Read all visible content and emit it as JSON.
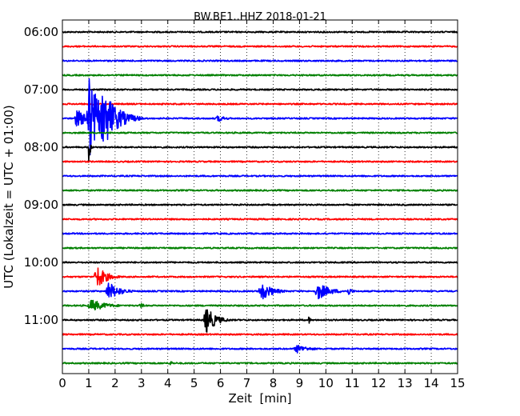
{
  "chart_data": {
    "type": "line",
    "title": "BW.BE1..HHZ 2018-01-21",
    "xlabel": "Zeit  [min]",
    "ylabel": "UTC (Lokalzeit = UTC + 01:00)",
    "xlim": [
      0,
      15
    ],
    "x_ticks": [
      0,
      1,
      2,
      3,
      4,
      5,
      6,
      7,
      8,
      9,
      10,
      11,
      12,
      13,
      14,
      15
    ],
    "y_tick_labels": [
      "06:00",
      "07:00",
      "08:00",
      "09:00",
      "10:00",
      "11:00"
    ],
    "grid": "vertical dotted at each minute",
    "row_colors": [
      "#000000",
      "#ff0000",
      "#0000ff",
      "#008000"
    ],
    "rows": [
      {
        "start": "06:00",
        "events": []
      },
      {
        "start": "06:15",
        "events": []
      },
      {
        "start": "06:30",
        "events": []
      },
      {
        "start": "06:45",
        "events": []
      },
      {
        "start": "07:00",
        "events": []
      },
      {
        "start": "07:15",
        "events": []
      },
      {
        "start": "07:30",
        "events": [
          {
            "t": 0.55,
            "amp": 0.5,
            "dur": 0.5
          },
          {
            "t": 1.0,
            "amp": 2.6,
            "dur": 0.4
          },
          {
            "t": 1.25,
            "amp": 0.8,
            "dur": 0.3
          },
          {
            "t": 1.55,
            "amp": 1.8,
            "dur": 0.5
          },
          {
            "t": 5.9,
            "amp": 0.2,
            "dur": 0.3
          }
        ]
      },
      {
        "start": "07:45",
        "events": []
      },
      {
        "start": "08:00",
        "events": [
          {
            "t": 1.0,
            "amp": 1.1,
            "dur": 0.05
          },
          {
            "t": 12.2,
            "amp": 0.05,
            "dur": 0.2
          }
        ]
      },
      {
        "start": "08:15",
        "events": []
      },
      {
        "start": "08:30",
        "events": [
          {
            "t": 11.5,
            "amp": 0.12,
            "dur": 0.05
          }
        ]
      },
      {
        "start": "08:45",
        "events": []
      },
      {
        "start": "09:00",
        "events": []
      },
      {
        "start": "09:15",
        "events": []
      },
      {
        "start": "09:30",
        "events": []
      },
      {
        "start": "09:45",
        "events": []
      },
      {
        "start": "10:00",
        "events": [
          {
            "t": 4.9,
            "amp": 0.06,
            "dur": 0.1
          }
        ]
      },
      {
        "start": "10:15",
        "events": [
          {
            "t": 1.3,
            "amp": 0.7,
            "dur": 0.35
          }
        ]
      },
      {
        "start": "10:30",
        "events": [
          {
            "t": 1.75,
            "amp": 0.55,
            "dur": 0.4
          },
          {
            "t": 7.55,
            "amp": 0.55,
            "dur": 0.4
          },
          {
            "t": 9.7,
            "amp": 0.5,
            "dur": 0.45
          },
          {
            "t": 10.85,
            "amp": 0.25,
            "dur": 0.15
          }
        ]
      },
      {
        "start": "10:45",
        "events": [
          {
            "t": 1.1,
            "amp": 0.35,
            "dur": 0.55
          },
          {
            "t": 2.95,
            "amp": 0.25,
            "dur": 0.1
          }
        ]
      },
      {
        "start": "11:00",
        "events": [
          {
            "t": 5.45,
            "amp": 0.8,
            "dur": 0.35
          },
          {
            "t": 9.35,
            "amp": 0.25,
            "dur": 0.06
          }
        ]
      },
      {
        "start": "11:15",
        "events": []
      },
      {
        "start": "11:30",
        "events": [
          {
            "t": 8.9,
            "amp": 0.25,
            "dur": 0.45
          }
        ]
      },
      {
        "start": "11:45",
        "events": [
          {
            "t": 4.1,
            "amp": 0.25,
            "dur": 0.06
          }
        ]
      }
    ]
  }
}
